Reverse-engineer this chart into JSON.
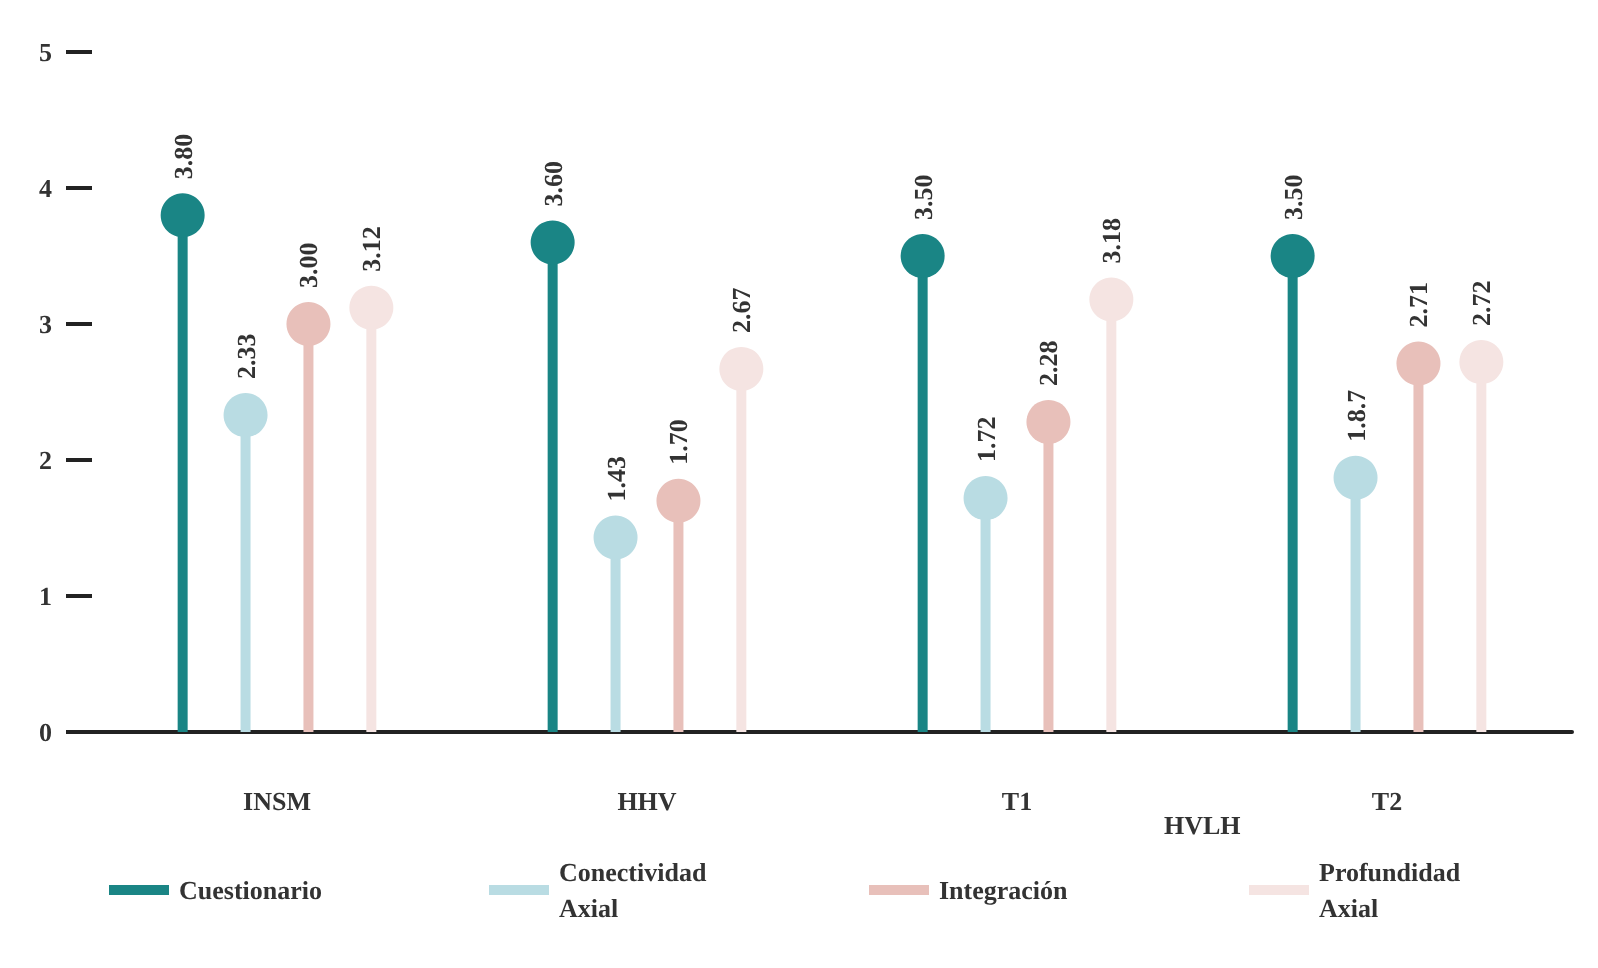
{
  "chart_data": {
    "type": "lollipop",
    "categories": [
      "INSM",
      "HHV",
      "T1",
      "T2"
    ],
    "series": [
      {
        "name": "Cuestionario",
        "color": "#1a8585",
        "values": [
          3.8,
          3.6,
          3.5,
          3.5
        ],
        "value_labels": [
          "3.80",
          "3.60",
          "3.50",
          "3.50"
        ]
      },
      {
        "name": "Conectividad Axial",
        "color": "#b9dce3",
        "values": [
          2.33,
          1.43,
          1.72,
          1.87
        ],
        "value_labels": [
          "2.33",
          "1.43",
          "1.72",
          "1.8.7"
        ]
      },
      {
        "name": "Integración",
        "color": "#e8c0ba",
        "values": [
          3.0,
          1.7,
          2.28,
          2.71
        ],
        "value_labels": [
          "3.00",
          "1.70",
          "2.28",
          "2.71"
        ]
      },
      {
        "name": "Profundidad Axial",
        "color": "#f5e4e2",
        "values": [
          3.12,
          2.67,
          3.18,
          2.72
        ],
        "value_labels": [
          "3.12",
          "2.67",
          "3.18",
          "2.72"
        ]
      }
    ],
    "annotations": [
      "HVLH"
    ],
    "ylim": [
      0,
      5
    ],
    "yticks": [
      0,
      1,
      2,
      3,
      4,
      5
    ],
    "grid": false,
    "legend": "bottom",
    "marker": "circle"
  }
}
